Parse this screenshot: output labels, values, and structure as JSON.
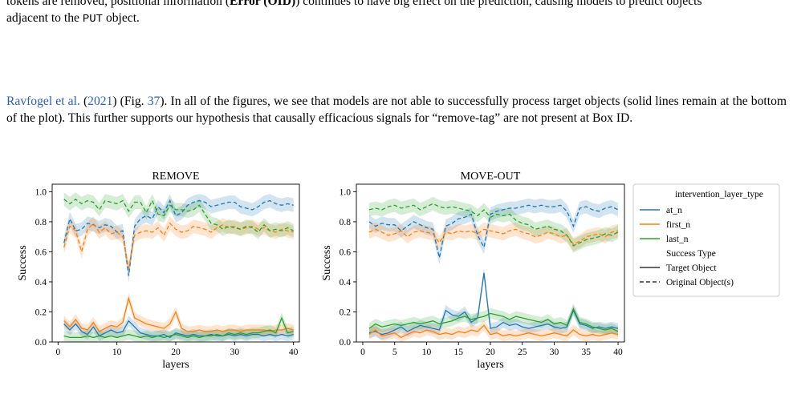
{
  "text": {
    "p1_line1_prefix": "tokens are removed, positional information (",
    "p1_bold": "Error (OID)",
    "p1_line1_mid": ") continues to have big effect on the prediction, causing models to predict objects",
    "p1_line2_prefix": "adjacent to the ",
    "p1_code": "PUT",
    "p1_line2_suffix": " object.",
    "p2_cite_author": "Ravfogel et al.",
    "p2_cite_open": " (",
    "p2_cite_year": "2021",
    "p2_cite_close": ") (Fig. ",
    "p2_fig_ref": "37",
    "p2_rest": "). In all of the figures, we see that models are not able to successfully process target objects (solid lines remain at the bottom of the plot). This further supports our hypothesis that causally efficacious signals for “remove-tag” are not present at Box ID."
  },
  "legend": {
    "title": "intervention_layer_type",
    "entries": [
      "at_n",
      "first_n",
      "last_n"
    ],
    "style_title": "Success Type",
    "style_entries": [
      "Target Object",
      "Original Object(s)"
    ]
  },
  "colors": {
    "at_n": "#1f77b4",
    "first_n": "#ff7f0e",
    "last_n": "#2ca02c"
  },
  "chart_data": [
    {
      "type": "line",
      "title": "REMOVE",
      "xlabel": "layers",
      "ylabel": "Success",
      "xlim": [
        -1,
        41
      ],
      "ylim": [
        0,
        1.05
      ],
      "xticks": [
        0,
        10,
        20,
        30,
        40
      ],
      "yticks": [
        0.0,
        0.2,
        0.4,
        0.6,
        0.8,
        1.0
      ],
      "x": [
        1,
        2,
        3,
        4,
        5,
        6,
        7,
        8,
        9,
        10,
        11,
        12,
        13,
        14,
        15,
        16,
        17,
        18,
        19,
        20,
        21,
        22,
        23,
        24,
        25,
        26,
        27,
        28,
        29,
        30,
        31,
        32,
        33,
        34,
        35,
        36,
        37,
        38,
        39,
        40
      ],
      "series": [
        {
          "name": "at_n",
          "style": "dashed",
          "values": [
            0.66,
            0.82,
            0.74,
            0.75,
            0.79,
            0.78,
            0.76,
            0.78,
            0.77,
            0.73,
            0.74,
            0.44,
            0.77,
            0.82,
            0.84,
            0.82,
            0.9,
            0.86,
            0.94,
            0.84,
            0.86,
            0.91,
            0.93,
            0.94,
            0.93,
            0.9,
            0.91,
            0.92,
            0.93,
            0.93,
            0.9,
            0.89,
            0.88,
            0.9,
            0.93,
            0.94,
            0.92,
            0.91,
            0.92,
            0.91
          ]
        },
        {
          "name": "first_n",
          "style": "dashed",
          "values": [
            0.63,
            0.77,
            0.74,
            0.6,
            0.75,
            0.79,
            0.73,
            0.76,
            0.72,
            0.73,
            0.7,
            0.49,
            0.71,
            0.73,
            0.74,
            0.73,
            0.76,
            0.71,
            0.79,
            0.75,
            0.73,
            0.74,
            0.77,
            0.76,
            0.75,
            0.73,
            0.76,
            0.78,
            0.76,
            0.77,
            0.75,
            0.76,
            0.77,
            0.75,
            0.76,
            0.74,
            0.73,
            0.75,
            0.74,
            0.73
          ]
        },
        {
          "name": "last_n",
          "style": "dashed",
          "values": [
            0.95,
            0.92,
            0.95,
            0.92,
            0.94,
            0.93,
            0.88,
            0.94,
            0.93,
            0.92,
            0.94,
            0.87,
            0.93,
            0.93,
            0.86,
            0.94,
            0.85,
            0.84,
            0.91,
            0.88,
            0.88,
            0.87,
            0.88,
            0.91,
            0.85,
            0.79,
            0.78,
            0.75,
            0.77,
            0.76,
            0.75,
            0.77,
            0.76,
            0.73,
            0.78,
            0.74,
            0.75,
            0.74,
            0.76,
            0.74
          ]
        },
        {
          "name": "at_n",
          "style": "solid",
          "values": [
            0.12,
            0.08,
            0.12,
            0.07,
            0.05,
            0.1,
            0.04,
            0.06,
            0.08,
            0.06,
            0.07,
            0.14,
            0.1,
            0.06,
            0.05,
            0.04,
            0.04,
            0.05,
            0.03,
            0.06,
            0.05,
            0.04,
            0.05,
            0.04,
            0.04,
            0.05,
            0.04,
            0.04,
            0.05,
            0.04,
            0.05,
            0.04,
            0.05,
            0.05,
            0.04,
            0.05,
            0.04,
            0.05,
            0.04,
            0.05
          ]
        },
        {
          "name": "first_n",
          "style": "solid",
          "values": [
            0.14,
            0.1,
            0.15,
            0.09,
            0.08,
            0.13,
            0.07,
            0.09,
            0.11,
            0.1,
            0.13,
            0.29,
            0.16,
            0.14,
            0.12,
            0.11,
            0.1,
            0.09,
            0.12,
            0.2,
            0.09,
            0.07,
            0.07,
            0.08,
            0.07,
            0.07,
            0.08,
            0.07,
            0.08,
            0.08,
            0.07,
            0.08,
            0.08,
            0.08,
            0.08,
            0.07,
            0.08,
            0.08,
            0.09,
            0.08
          ]
        },
        {
          "name": "last_n",
          "style": "solid",
          "values": [
            0.04,
            0.03,
            0.03,
            0.03,
            0.04,
            0.03,
            0.04,
            0.03,
            0.04,
            0.03,
            0.04,
            0.05,
            0.04,
            0.03,
            0.04,
            0.03,
            0.04,
            0.03,
            0.04,
            0.05,
            0.04,
            0.03,
            0.04,
            0.03,
            0.04,
            0.04,
            0.05,
            0.04,
            0.06,
            0.05,
            0.06,
            0.05,
            0.06,
            0.06,
            0.07,
            0.08,
            0.06,
            0.16,
            0.06,
            0.07
          ]
        }
      ]
    },
    {
      "type": "line",
      "title": "MOVE-OUT",
      "xlabel": "layers",
      "ylabel": "Success",
      "xlim": [
        -1,
        41
      ],
      "ylim": [
        0,
        1.05
      ],
      "xticks": [
        0,
        5,
        10,
        15,
        20,
        25,
        30,
        35,
        40
      ],
      "yticks": [
        0.0,
        0.2,
        0.4,
        0.6,
        0.8,
        1.0
      ],
      "x": [
        1,
        2,
        3,
        4,
        5,
        6,
        7,
        8,
        9,
        10,
        11,
        12,
        13,
        14,
        15,
        16,
        17,
        18,
        19,
        20,
        21,
        22,
        23,
        24,
        25,
        26,
        27,
        28,
        29,
        30,
        31,
        32,
        33,
        34,
        35,
        36,
        37,
        38,
        39,
        40
      ],
      "series": [
        {
          "name": "at_n",
          "style": "dashed",
          "values": [
            0.8,
            0.77,
            0.79,
            0.78,
            0.78,
            0.74,
            0.77,
            0.8,
            0.78,
            0.76,
            0.75,
            0.56,
            0.77,
            0.79,
            0.82,
            0.83,
            0.85,
            0.71,
            0.63,
            0.85,
            0.87,
            0.88,
            0.89,
            0.89,
            0.9,
            0.91,
            0.9,
            0.91,
            0.9,
            0.9,
            0.91,
            0.87,
            0.77,
            0.89,
            0.9,
            0.88,
            0.87,
            0.89,
            0.9,
            0.88
          ]
        },
        {
          "name": "first_n",
          "style": "dashed",
          "values": [
            0.73,
            0.75,
            0.73,
            0.71,
            0.72,
            0.74,
            0.7,
            0.73,
            0.74,
            0.73,
            0.72,
            0.66,
            0.73,
            0.72,
            0.74,
            0.73,
            0.74,
            0.72,
            0.75,
            0.74,
            0.73,
            0.72,
            0.74,
            0.75,
            0.73,
            0.72,
            0.7,
            0.71,
            0.73,
            0.72,
            0.7,
            0.71,
            0.65,
            0.67,
            0.7,
            0.71,
            0.72,
            0.7,
            0.73,
            0.74
          ]
        },
        {
          "name": "last_n",
          "style": "dashed",
          "values": [
            0.88,
            0.89,
            0.88,
            0.9,
            0.91,
            0.89,
            0.9,
            0.91,
            0.88,
            0.9,
            0.92,
            0.9,
            0.89,
            0.9,
            0.89,
            0.88,
            0.87,
            0.84,
            0.88,
            0.83,
            0.85,
            0.84,
            0.85,
            0.81,
            0.79,
            0.78,
            0.75,
            0.76,
            0.77,
            0.75,
            0.74,
            0.71,
            0.64,
            0.66,
            0.68,
            0.69,
            0.7,
            0.72,
            0.71,
            0.73
          ]
        },
        {
          "name": "at_n",
          "style": "solid",
          "values": [
            0.06,
            0.07,
            0.05,
            0.06,
            0.08,
            0.1,
            0.07,
            0.09,
            0.11,
            0.1,
            0.09,
            0.08,
            0.21,
            0.18,
            0.17,
            0.2,
            0.13,
            0.16,
            0.46,
            0.09,
            0.1,
            0.13,
            0.11,
            0.12,
            0.1,
            0.09,
            0.1,
            0.11,
            0.12,
            0.1,
            0.09,
            0.1,
            0.21,
            0.12,
            0.11,
            0.09,
            0.1,
            0.09,
            0.1,
            0.09
          ]
        },
        {
          "name": "first_n",
          "style": "solid",
          "values": [
            0.05,
            0.08,
            0.04,
            0.05,
            0.06,
            0.03,
            0.05,
            0.07,
            0.06,
            0.08,
            0.07,
            0.05,
            0.06,
            0.05,
            0.07,
            0.06,
            0.08,
            0.07,
            0.11,
            0.05,
            0.06,
            0.04,
            0.05,
            0.04,
            0.05,
            0.06,
            0.05,
            0.04,
            0.05,
            0.06,
            0.05,
            0.04,
            0.08,
            0.05,
            0.04,
            0.05,
            0.04,
            0.05,
            0.06,
            0.05
          ]
        },
        {
          "name": "last_n",
          "style": "solid",
          "values": [
            0.09,
            0.12,
            0.1,
            0.11,
            0.12,
            0.11,
            0.12,
            0.13,
            0.12,
            0.13,
            0.14,
            0.12,
            0.13,
            0.14,
            0.16,
            0.17,
            0.15,
            0.16,
            0.17,
            0.19,
            0.18,
            0.17,
            0.15,
            0.17,
            0.16,
            0.15,
            0.14,
            0.13,
            0.15,
            0.12,
            0.13,
            0.11,
            0.22,
            0.13,
            0.12,
            0.1,
            0.09,
            0.08,
            0.09,
            0.07
          ]
        }
      ]
    }
  ]
}
